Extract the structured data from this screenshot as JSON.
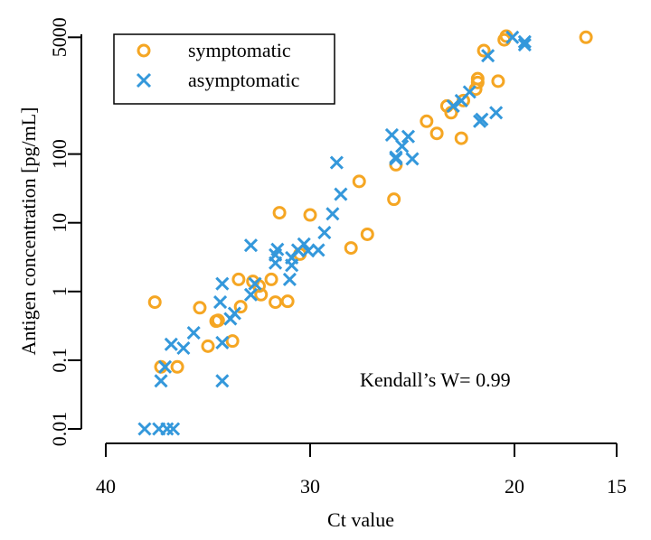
{
  "chart_data": {
    "type": "scatter",
    "title": "",
    "xlabel": "Ct value",
    "ylabel": "Antigen concentration [pg/mL]",
    "x_axis": {
      "reversed": true,
      "lim": [
        40,
        15
      ],
      "ticks": [
        40,
        30,
        20,
        15
      ],
      "tick_labels": [
        "40",
        "30",
        "20",
        "15"
      ]
    },
    "y_axis": {
      "scale": "log",
      "lim": [
        0.01,
        5000
      ],
      "ticks": [
        0.01,
        0.1,
        1,
        10,
        100,
        5000
      ],
      "tick_labels": [
        "0.01",
        "0.1",
        "1",
        "10",
        "100",
        "5000"
      ]
    },
    "legend": {
      "position": "top-left",
      "entries": [
        "symptomatic",
        "asymptomatic"
      ]
    },
    "annotation": "Kendall’s W= 0.99",
    "colors": {
      "symptomatic": "#f5a623",
      "asymptomatic": "#3498db"
    },
    "series": [
      {
        "name": "symptomatic",
        "marker": "circle",
        "points": [
          [
            37.6,
            0.7
          ],
          [
            37.3,
            0.08
          ],
          [
            36.5,
            0.08
          ],
          [
            35.4,
            0.58
          ],
          [
            35.0,
            0.16
          ],
          [
            34.6,
            0.37
          ],
          [
            34.5,
            0.38
          ],
          [
            33.8,
            0.19
          ],
          [
            33.5,
            1.5
          ],
          [
            33.4,
            0.6
          ],
          [
            32.8,
            1.4
          ],
          [
            32.5,
            1.2
          ],
          [
            32.4,
            0.9
          ],
          [
            31.9,
            1.5
          ],
          [
            31.7,
            0.7
          ],
          [
            31.5,
            14
          ],
          [
            31.1,
            0.72
          ],
          [
            30.5,
            3.5
          ],
          [
            30.0,
            13
          ],
          [
            28.0,
            4.3
          ],
          [
            27.6,
            40
          ],
          [
            27.2,
            6.8
          ],
          [
            25.9,
            22
          ],
          [
            25.8,
            70
          ],
          [
            24.3,
            300
          ],
          [
            23.8,
            200
          ],
          [
            23.3,
            500
          ],
          [
            23.1,
            400
          ],
          [
            22.6,
            170
          ],
          [
            22.5,
            600
          ],
          [
            21.9,
            880
          ],
          [
            21.8,
            1100
          ],
          [
            21.8,
            1250
          ],
          [
            21.5,
            3200
          ],
          [
            20.8,
            1150
          ],
          [
            20.5,
            4600
          ],
          [
            20.4,
            5200
          ],
          [
            16.5,
            5000
          ]
        ]
      },
      {
        "name": "asymptomatic",
        "marker": "x",
        "points": [
          [
            38.1,
            0.01
          ],
          [
            37.4,
            0.01
          ],
          [
            37.0,
            0.01
          ],
          [
            36.7,
            0.01
          ],
          [
            37.3,
            0.05
          ],
          [
            37.1,
            0.08
          ],
          [
            36.8,
            0.17
          ],
          [
            36.2,
            0.15
          ],
          [
            35.7,
            0.25
          ],
          [
            34.4,
            0.7
          ],
          [
            34.3,
            1.3
          ],
          [
            34.3,
            0.18
          ],
          [
            34.3,
            0.05
          ],
          [
            33.9,
            0.4
          ],
          [
            33.7,
            0.48
          ],
          [
            32.9,
            4.7
          ],
          [
            32.9,
            0.9
          ],
          [
            32.7,
            1.3
          ],
          [
            31.7,
            2.6
          ],
          [
            31.7,
            3.4
          ],
          [
            31.6,
            4.1
          ],
          [
            31.0,
            1.5
          ],
          [
            30.9,
            2.4
          ],
          [
            30.9,
            3.1
          ],
          [
            30.6,
            4.0
          ],
          [
            30.3,
            4.9
          ],
          [
            30.1,
            3.9
          ],
          [
            29.6,
            4.0
          ],
          [
            29.3,
            7.2
          ],
          [
            28.9,
            13.5
          ],
          [
            28.5,
            26
          ],
          [
            28.7,
            75
          ],
          [
            26.0,
            190
          ],
          [
            25.8,
            85
          ],
          [
            25.8,
            90
          ],
          [
            25.5,
            130
          ],
          [
            25.2,
            180
          ],
          [
            25.0,
            85
          ],
          [
            23.0,
            500
          ],
          [
            22.6,
            600
          ],
          [
            22.2,
            800
          ],
          [
            21.7,
            300
          ],
          [
            21.6,
            320
          ],
          [
            21.3,
            2700
          ],
          [
            20.9,
            400
          ],
          [
            20.1,
            5000
          ],
          [
            19.5,
            3900
          ],
          [
            19.5,
            4300
          ]
        ]
      }
    ]
  }
}
